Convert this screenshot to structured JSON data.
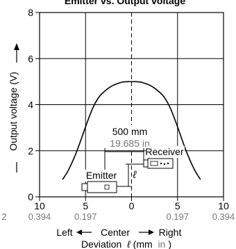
{
  "chart_data": {
    "type": "line",
    "title": "Emitter vs. Output voltage",
    "ylabel": "Output voltage (V)",
    "ylim": [
      0,
      8
    ],
    "yticks": [
      0,
      2,
      4,
      6,
      8
    ],
    "xlim": [
      -10,
      10
    ],
    "xticks": [
      {
        "value": -10,
        "mm": "10",
        "in": "0.394"
      },
      {
        "value": -5,
        "mm": "5",
        "in": "0.197"
      },
      {
        "value": 0,
        "mm": "0",
        "in": ""
      },
      {
        "value": 5,
        "mm": "5",
        "in": "0.197"
      },
      {
        "value": 10,
        "mm": "10",
        "in": "0.394"
      }
    ],
    "left_edge_fragment": "2",
    "x_direction": {
      "left": "Left",
      "center": "Center",
      "right": "Right"
    },
    "xlabel": {
      "prefix": "Deviation",
      "symbol": "ℓ",
      "unit_open": "(mm",
      "unit_in": "in",
      "unit_close": ")"
    },
    "grid": true,
    "series": [
      {
        "x": [
          -7.5,
          -7.0,
          -6.5,
          -6.0,
          -5.5,
          -5.0,
          -4.5,
          -4.0,
          -3.5,
          -3.0,
          -2.5,
          -2.0,
          -1.5,
          -1.0,
          -0.5,
          0.0,
          0.5,
          1.0,
          1.5,
          2.0,
          2.5,
          3.0,
          3.5,
          4.0,
          4.5,
          5.0,
          5.5,
          6.0,
          6.5,
          7.0,
          7.5
        ],
        "values": [
          0.75,
          1.06,
          1.46,
          1.93,
          2.47,
          3.04,
          3.58,
          4.03,
          4.35,
          4.56,
          4.72,
          4.84,
          4.92,
          4.98,
          5.0,
          5.0,
          5.0,
          4.98,
          4.92,
          4.84,
          4.72,
          4.56,
          4.35,
          4.03,
          3.58,
          3.04,
          2.47,
          1.93,
          1.46,
          1.06,
          0.75
        ]
      }
    ],
    "inset": {
      "distance_mm": "500 mm",
      "distance_in": "19.685 in",
      "emitter_label": "Emitter",
      "receiver_label": "Receiver",
      "deviation_symbol": "ℓ"
    }
  }
}
